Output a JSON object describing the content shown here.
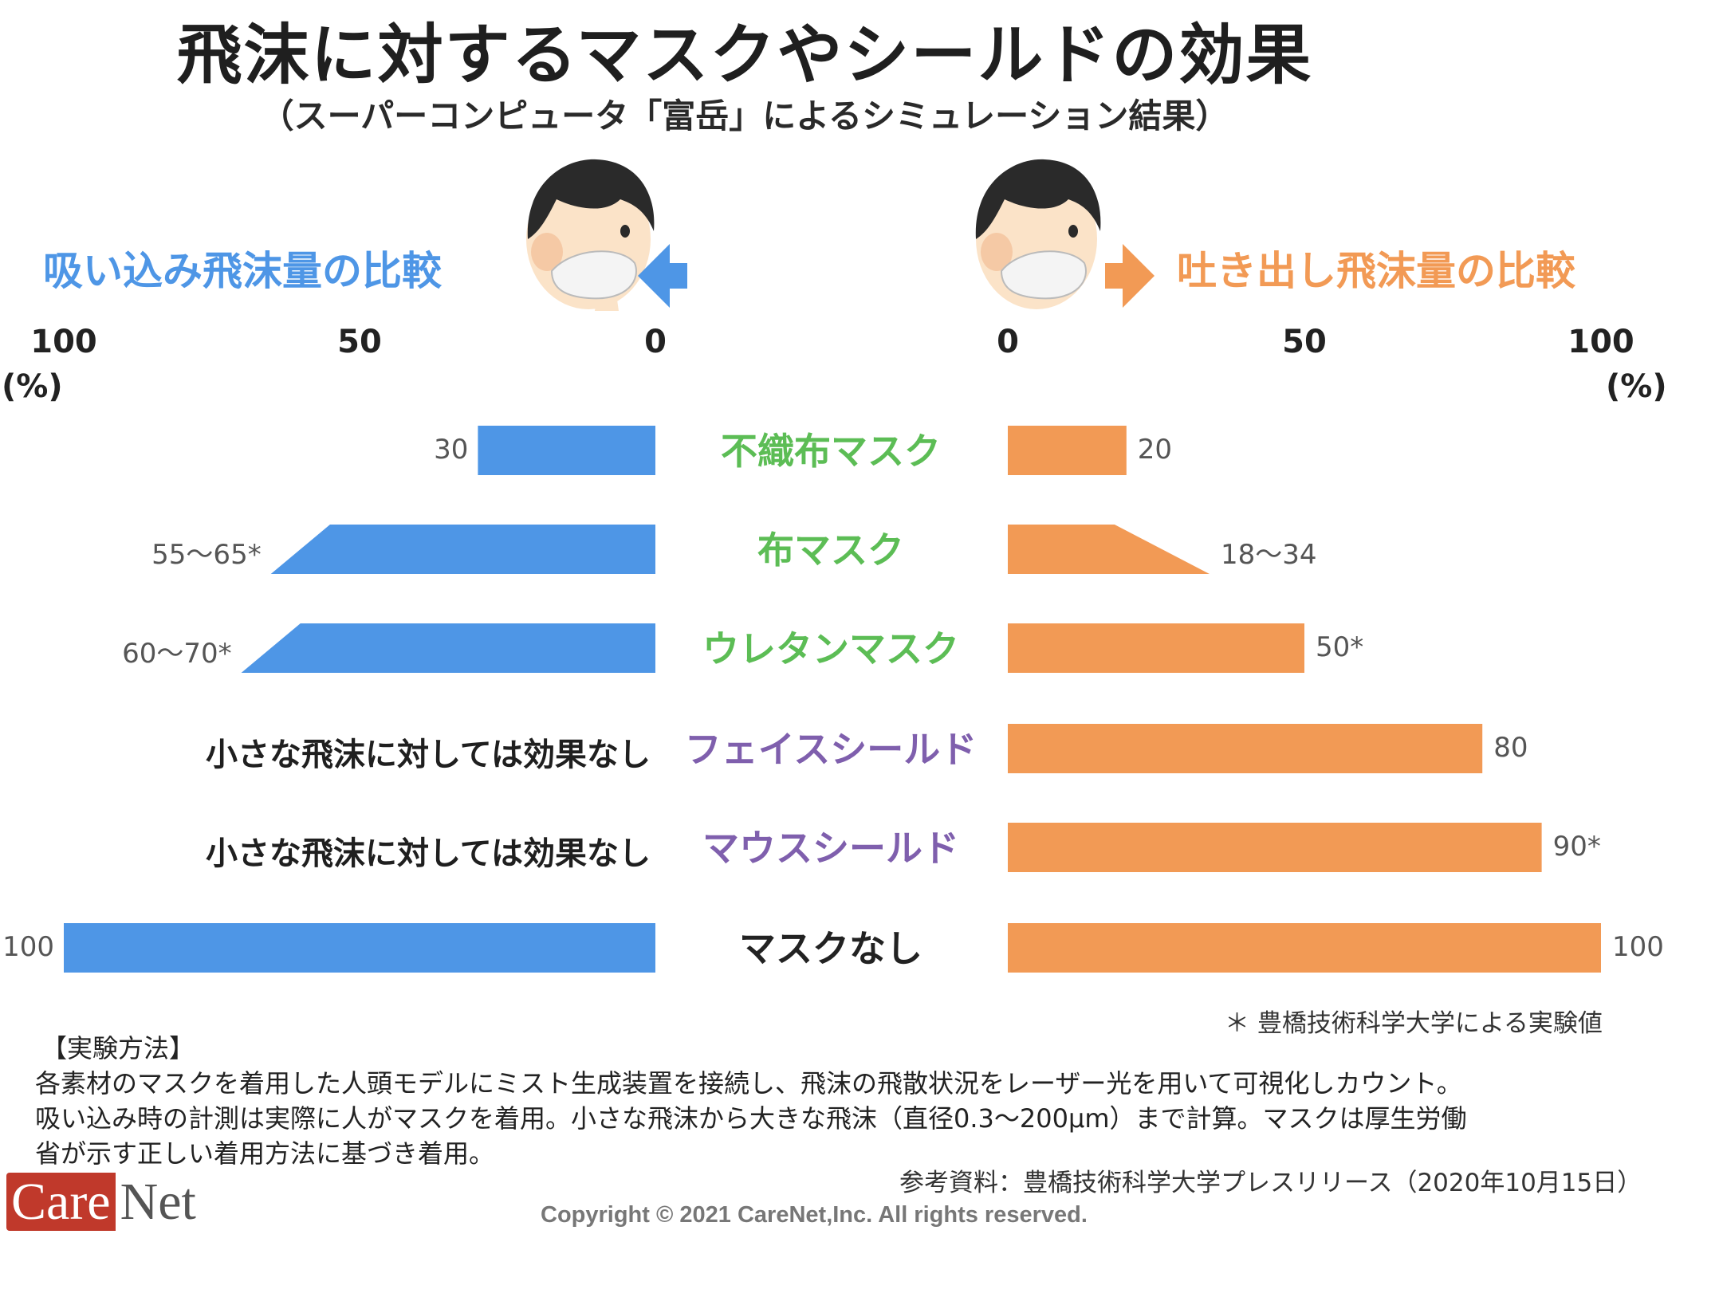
{
  "title": "飛沫に対するマスクやシールドの効果",
  "subtitle": "（スーパーコンピュータ「富岳」によるシミュレーション結果）",
  "left_panel": {
    "label": "吸い込み飛沫量の比較",
    "axis_ticks": [
      "100",
      "50",
      "0"
    ],
    "unit": "(%)",
    "color": "#4e96e6"
  },
  "right_panel": {
    "label": "吐き出し飛沫量の比較",
    "axis_ticks": [
      "0",
      "50",
      "100"
    ],
    "unit": "(%)",
    "color": "#f29a55"
  },
  "chart_data": {
    "type": "bar",
    "categories": [
      "不織布マスク",
      "布マスク",
      "ウレタンマスク",
      "フェイスシールド",
      "マウスシールド",
      "マスクなし"
    ],
    "category_colors": [
      "#5cbd55",
      "#5cbd55",
      "#5cbd55",
      "#7f5fad",
      "#7f5fad",
      "#222222"
    ],
    "xlim": [
      0,
      100
    ],
    "series": [
      {
        "name": "吸い込み飛沫量の比較",
        "color": "#4e96e6",
        "values": [
          30,
          [
            55,
            65
          ],
          [
            60,
            70
          ],
          null,
          null,
          100
        ],
        "labels": [
          "30",
          "55〜65*",
          "60〜70*",
          "",
          "",
          "100"
        ],
        "no_effect_text": [
          "",
          "",
          "",
          "小さな飛沫に対しては効果なし",
          "小さな飛沫に対しては効果なし",
          ""
        ]
      },
      {
        "name": "吐き出し飛沫量の比較",
        "color": "#f29a55",
        "values": [
          20,
          [
            18,
            34
          ],
          50,
          80,
          90,
          100
        ],
        "labels": [
          "20",
          "18〜34",
          "50*",
          "80",
          "90*",
          "100"
        ]
      }
    ]
  },
  "footnote": "＊ 豊橋技術科学大学による実験値",
  "method": {
    "title": "【実験方法】",
    "lines": [
      "各素材のマスクを着用した人頭モデルにミスト生成装置を接続し、飛沫の飛散状況をレーザー光を用いて可視化しカウント。",
      "吸い込み時の計測は実際に人がマスクを着用。小さな飛沫から大きな飛沫（直径0.3〜200μm）まで計算。マスクは厚生労働",
      "省が示す正しい着用方法に基づき着用。"
    ]
  },
  "reference": "参考資料：豊橋技術科学大学プレスリリース（2020年10月15日）",
  "copyright": "Copyright © 2021 CareNet,Inc. All rights reserved.",
  "logo": {
    "care": "Care",
    "net": "Net"
  }
}
